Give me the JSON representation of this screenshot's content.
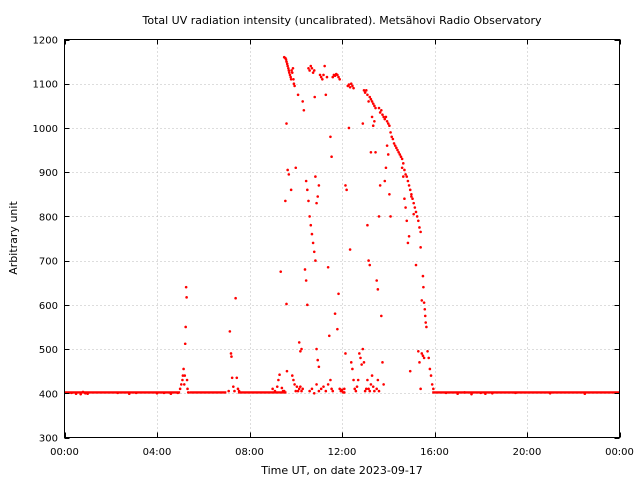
{
  "chart_data": {
    "type": "scatter",
    "title": "Total UV radiation intensity (uncalibrated). Metsähovi Radio Observatory",
    "xlabel": "Time UT, on date 2023-09-17",
    "ylabel": "Arbitrary unit",
    "xlim": [
      0,
      24
    ],
    "ylim": [
      300,
      1200
    ],
    "x_ticks": [
      0,
      4,
      8,
      12,
      16,
      20,
      24
    ],
    "x_tick_labels": [
      "00:00",
      "04:00",
      "08:00",
      "12:00",
      "16:00",
      "20:00",
      "00:00"
    ],
    "y_ticks": [
      300,
      400,
      500,
      600,
      700,
      800,
      900,
      1000,
      1100,
      1200
    ],
    "y_tick_labels": [
      "300",
      "400",
      "500",
      "600",
      "700",
      "800",
      "900",
      "1000",
      "1100",
      "1200"
    ],
    "grid": true,
    "marker_color": "#ff0000",
    "baseline": {
      "value": 402,
      "ranges": [
        [
          0,
          5.0
        ],
        [
          5.4,
          7.0
        ],
        [
          7.5,
          9.6
        ],
        [
          15.9,
          24
        ]
      ]
    },
    "points": [
      [
        0.3,
        401
      ],
      [
        0.5,
        399
      ],
      [
        0.7,
        398
      ],
      [
        0.8,
        403
      ],
      [
        0.9,
        400
      ],
      [
        1.0,
        399
      ],
      [
        2.3,
        401
      ],
      [
        2.8,
        399
      ],
      [
        3.1,
        401
      ],
      [
        4.0,
        400
      ],
      [
        4.3,
        401
      ],
      [
        4.6,
        399
      ],
      [
        4.9,
        401
      ],
      [
        5.0,
        410
      ],
      [
        5.05,
        420
      ],
      [
        5.1,
        430
      ],
      [
        5.12,
        440
      ],
      [
        5.15,
        455
      ],
      [
        5.18,
        420
      ],
      [
        5.2,
        440
      ],
      [
        5.22,
        512
      ],
      [
        5.24,
        550
      ],
      [
        5.26,
        640
      ],
      [
        5.28,
        617
      ],
      [
        5.3,
        430
      ],
      [
        5.32,
        410
      ],
      [
        5.35,
        402
      ],
      [
        7.1,
        405
      ],
      [
        7.15,
        540
      ],
      [
        7.2,
        490
      ],
      [
        7.22,
        483
      ],
      [
        7.25,
        435
      ],
      [
        7.3,
        415
      ],
      [
        7.35,
        405
      ],
      [
        7.4,
        615
      ],
      [
        7.45,
        435
      ],
      [
        7.5,
        410
      ],
      [
        7.55,
        405
      ],
      [
        9.0,
        410
      ],
      [
        9.1,
        405
      ],
      [
        9.2,
        415
      ],
      [
        9.25,
        430
      ],
      [
        9.3,
        442
      ],
      [
        9.35,
        675
      ],
      [
        9.4,
        412
      ],
      [
        9.45,
        405
      ],
      [
        9.5,
        405
      ],
      [
        9.55,
        835
      ],
      [
        9.6,
        602
      ],
      [
        9.62,
        450
      ],
      [
        9.5,
        1160
      ],
      [
        9.55,
        1158
      ],
      [
        9.58,
        1155
      ],
      [
        9.6,
        1150
      ],
      [
        9.63,
        1145
      ],
      [
        9.65,
        1140
      ],
      [
        9.68,
        1135
      ],
      [
        9.7,
        1130
      ],
      [
        9.72,
        1125
      ],
      [
        9.75,
        1120
      ],
      [
        9.78,
        1115
      ],
      [
        9.8,
        1110
      ],
      [
        9.82,
        1130
      ],
      [
        9.85,
        1125
      ],
      [
        9.88,
        1135
      ],
      [
        9.9,
        1110
      ],
      [
        9.92,
        1100
      ],
      [
        9.95,
        1095
      ],
      [
        9.6,
        1010
      ],
      [
        9.65,
        905
      ],
      [
        9.7,
        895
      ],
      [
        9.8,
        860
      ],
      [
        9.85,
        440
      ],
      [
        9.9,
        430
      ],
      [
        9.95,
        420
      ],
      [
        10.0,
        405
      ],
      [
        10.05,
        415
      ],
      [
        10.1,
        405
      ],
      [
        10.15,
        410
      ],
      [
        10.2,
        415
      ],
      [
        10.25,
        405
      ],
      [
        10.3,
        410
      ],
      [
        10.0,
        910
      ],
      [
        10.1,
        1075
      ],
      [
        10.15,
        515
      ],
      [
        10.2,
        495
      ],
      [
        10.25,
        500
      ],
      [
        10.3,
        1060
      ],
      [
        10.35,
        1040
      ],
      [
        10.4,
        680
      ],
      [
        10.45,
        655
      ],
      [
        10.5,
        600
      ],
      [
        10.55,
        1135
      ],
      [
        10.6,
        1130
      ],
      [
        10.65,
        1140
      ],
      [
        10.7,
        1135
      ],
      [
        10.75,
        1125
      ],
      [
        10.8,
        1130
      ],
      [
        10.82,
        1070
      ],
      [
        10.85,
        890
      ],
      [
        10.9,
        830
      ],
      [
        10.95,
        845
      ],
      [
        11.0,
        870
      ],
      [
        11.05,
        1120
      ],
      [
        11.1,
        1115
      ],
      [
        11.15,
        1110
      ],
      [
        11.2,
        1120
      ],
      [
        11.25,
        1140
      ],
      [
        11.3,
        1075
      ],
      [
        11.35,
        1115
      ],
      [
        11.4,
        685
      ],
      [
        11.45,
        530
      ],
      [
        10.45,
        880
      ],
      [
        10.5,
        860
      ],
      [
        10.55,
        835
      ],
      [
        10.6,
        800
      ],
      [
        10.65,
        780
      ],
      [
        10.7,
        760
      ],
      [
        10.75,
        740
      ],
      [
        10.8,
        720
      ],
      [
        10.85,
        700
      ],
      [
        10.9,
        500
      ],
      [
        10.95,
        475
      ],
      [
        11.0,
        460
      ],
      [
        10.6,
        405
      ],
      [
        10.7,
        410
      ],
      [
        10.8,
        400
      ],
      [
        10.9,
        420
      ],
      [
        11.0,
        405
      ],
      [
        11.1,
        410
      ],
      [
        11.2,
        415
      ],
      [
        11.3,
        405
      ],
      [
        11.4,
        420
      ],
      [
        11.5,
        430
      ],
      [
        11.55,
        410
      ],
      [
        11.6,
        405
      ],
      [
        11.5,
        980
      ],
      [
        11.55,
        935
      ],
      [
        11.6,
        1115
      ],
      [
        11.65,
        1120
      ],
      [
        11.7,
        1118
      ],
      [
        11.75,
        1122
      ],
      [
        11.8,
        1120
      ],
      [
        11.85,
        1115
      ],
      [
        11.9,
        1110
      ],
      [
        11.7,
        580
      ],
      [
        11.8,
        545
      ],
      [
        11.85,
        625
      ],
      [
        11.9,
        410
      ],
      [
        11.95,
        405
      ],
      [
        12.0,
        408
      ],
      [
        12.05,
        402
      ],
      [
        12.1,
        410
      ],
      [
        12.15,
        490
      ],
      [
        12.0,
        405
      ],
      [
        12.1,
        402
      ],
      [
        12.15,
        870
      ],
      [
        12.2,
        860
      ],
      [
        12.25,
        1095
      ],
      [
        12.3,
        1098
      ],
      [
        12.35,
        1092
      ],
      [
        12.4,
        1100
      ],
      [
        12.45,
        1095
      ],
      [
        12.5,
        1090
      ],
      [
        12.3,
        1000
      ],
      [
        12.35,
        725
      ],
      [
        12.4,
        470
      ],
      [
        12.45,
        455
      ],
      [
        12.5,
        430
      ],
      [
        12.55,
        410
      ],
      [
        12.6,
        405
      ],
      [
        12.65,
        415
      ],
      [
        12.7,
        430
      ],
      [
        12.75,
        490
      ],
      [
        12.8,
        480
      ],
      [
        12.85,
        465
      ],
      [
        12.9,
        500
      ],
      [
        12.95,
        470
      ],
      [
        12.9,
        1010
      ],
      [
        12.95,
        1085
      ],
      [
        13.0,
        1080
      ],
      [
        13.05,
        1085
      ],
      [
        13.1,
        1075
      ],
      [
        13.15,
        1060
      ],
      [
        13.2,
        1070
      ],
      [
        13.25,
        1065
      ],
      [
        13.3,
        1060
      ],
      [
        13.35,
        1055
      ],
      [
        13.4,
        1050
      ],
      [
        13.45,
        1045
      ],
      [
        13.1,
        780
      ],
      [
        13.15,
        700
      ],
      [
        13.2,
        690
      ],
      [
        13.25,
        945
      ],
      [
        13.3,
        1025
      ],
      [
        13.35,
        1005
      ],
      [
        13.4,
        1015
      ],
      [
        13.45,
        945
      ],
      [
        13.5,
        655
      ],
      [
        13.55,
        635
      ],
      [
        13.6,
        800
      ],
      [
        13.65,
        870
      ],
      [
        13.0,
        405
      ],
      [
        13.05,
        410
      ],
      [
        13.1,
        430
      ],
      [
        13.15,
        410
      ],
      [
        13.2,
        405
      ],
      [
        13.25,
        420
      ],
      [
        13.3,
        440
      ],
      [
        13.35,
        415
      ],
      [
        13.4,
        405
      ],
      [
        13.5,
        410
      ],
      [
        13.55,
        430
      ],
      [
        13.6,
        405
      ],
      [
        13.6,
        1045
      ],
      [
        13.65,
        1035
      ],
      [
        13.7,
        1040
      ],
      [
        13.75,
        1030
      ],
      [
        13.8,
        1025
      ],
      [
        13.85,
        1020
      ],
      [
        13.9,
        1025
      ],
      [
        13.95,
        1015
      ],
      [
        14.0,
        1010
      ],
      [
        14.05,
        1005
      ],
      [
        14.1,
        990
      ],
      [
        14.15,
        980
      ],
      [
        13.7,
        575
      ],
      [
        13.75,
        470
      ],
      [
        13.8,
        420
      ],
      [
        13.85,
        880
      ],
      [
        13.9,
        910
      ],
      [
        13.95,
        960
      ],
      [
        14.0,
        940
      ],
      [
        14.05,
        850
      ],
      [
        14.1,
        800
      ],
      [
        14.2,
        975
      ],
      [
        14.25,
        965
      ],
      [
        14.3,
        960
      ],
      [
        14.35,
        955
      ],
      [
        14.4,
        950
      ],
      [
        14.45,
        945
      ],
      [
        14.5,
        940
      ],
      [
        14.55,
        935
      ],
      [
        14.6,
        930
      ],
      [
        14.65,
        920
      ],
      [
        14.7,
        905
      ],
      [
        14.75,
        895
      ],
      [
        14.8,
        890
      ],
      [
        14.85,
        880
      ],
      [
        14.9,
        870
      ],
      [
        14.95,
        860
      ],
      [
        15.0,
        850
      ],
      [
        15.05,
        840
      ],
      [
        15.1,
        830
      ],
      [
        15.15,
        820
      ],
      [
        15.2,
        810
      ],
      [
        15.25,
        800
      ],
      [
        15.3,
        790
      ],
      [
        15.35,
        775
      ],
      [
        15.4,
        765
      ],
      [
        14.6,
        910
      ],
      [
        14.65,
        890
      ],
      [
        14.7,
        840
      ],
      [
        14.75,
        820
      ],
      [
        14.8,
        790
      ],
      [
        14.85,
        740
      ],
      [
        14.9,
        755
      ],
      [
        14.95,
        450
      ],
      [
        15.0,
        845
      ],
      [
        15.1,
        805
      ],
      [
        15.2,
        690
      ],
      [
        15.3,
        495
      ],
      [
        15.35,
        470
      ],
      [
        15.4,
        410
      ],
      [
        15.45,
        490
      ],
      [
        15.5,
        485
      ],
      [
        15.55,
        480
      ],
      [
        15.4,
        730
      ],
      [
        15.45,
        610
      ],
      [
        15.5,
        665
      ],
      [
        15.52,
        640
      ],
      [
        15.55,
        605
      ],
      [
        15.58,
        590
      ],
      [
        15.6,
        575
      ],
      [
        15.62,
        560
      ],
      [
        15.65,
        550
      ],
      [
        15.7,
        495
      ],
      [
        15.75,
        480
      ],
      [
        15.8,
        455
      ],
      [
        15.85,
        440
      ],
      [
        15.9,
        420
      ],
      [
        15.95,
        410
      ],
      [
        16.5,
        401
      ],
      [
        17.0,
        399
      ],
      [
        17.3,
        402
      ],
      [
        17.6,
        398
      ],
      [
        18.0,
        401
      ],
      [
        18.2,
        399
      ],
      [
        18.5,
        400
      ],
      [
        19.5,
        401
      ],
      [
        21.0,
        400
      ],
      [
        22.5,
        399
      ]
    ]
  }
}
